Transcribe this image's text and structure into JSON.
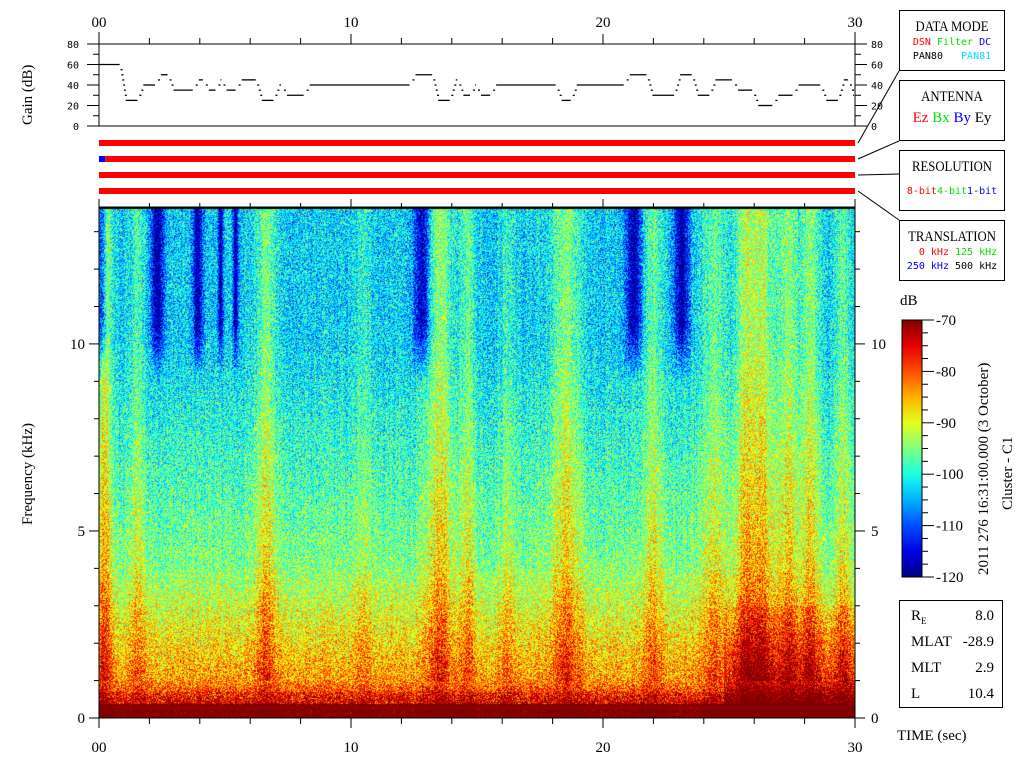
{
  "colors": {
    "red": "#ff0000",
    "green": "#00e000",
    "blue": "#0000ff",
    "cyan": "#00e0ff",
    "black": "#000000"
  },
  "data_mode": {
    "title": "DATA MODE",
    "items": [
      {
        "label": "DSN",
        "color": "#ff0000"
      },
      {
        "label": "Filter",
        "color": "#00e000"
      },
      {
        "label": "DC",
        "color": "#0000ff"
      },
      {
        "label": "PAN80",
        "color": "#000000"
      },
      {
        "label": "PAN81",
        "color": "#00e0ff"
      }
    ]
  },
  "antenna": {
    "title": "ANTENNA",
    "items": [
      {
        "label": "Ez",
        "color": "#ff0000"
      },
      {
        "label": "Bx",
        "color": "#00e000"
      },
      {
        "label": "By",
        "color": "#0000ff"
      },
      {
        "label": "Ey",
        "color": "#000000"
      }
    ]
  },
  "resolution": {
    "title": "RESOLUTION",
    "items": [
      {
        "label": "8-bit",
        "color": "#ff0000"
      },
      {
        "label": "4-bit",
        "color": "#00e000"
      },
      {
        "label": "1-bit",
        "color": "#0000ff"
      }
    ]
  },
  "translation": {
    "title": "TRANSLATION",
    "items": [
      {
        "label": "0 kHz",
        "color": "#ff0000"
      },
      {
        "label": "125 kHz",
        "color": "#00e000"
      },
      {
        "label": "250 kHz",
        "color": "#0000ff"
      },
      {
        "label": "500 kHz",
        "color": "#000000"
      }
    ]
  },
  "info": {
    "rows": [
      {
        "k": "R",
        "sub": "E",
        "v": "8.0"
      },
      {
        "k": "MLAT",
        "v": "-28.9"
      },
      {
        "k": "MLT",
        "v": "2.9"
      },
      {
        "k": "L",
        "v": "10.4"
      }
    ]
  },
  "header_vertical": "2011 276 16:31:00.000 (3 October)",
  "spacecraft": "Cluster - C1",
  "chart_data": [
    {
      "type": "line",
      "ylabel": "Gain (dB)",
      "xlim": [
        0,
        30
      ],
      "ylim": [
        0,
        80
      ],
      "x_tick_labels": [
        "00",
        "10",
        "20",
        "30"
      ],
      "y_tick_labels": [
        "0",
        "20",
        "40",
        "60",
        "80"
      ],
      "steps": [
        [
          0,
          60
        ],
        [
          0.9,
          25
        ],
        [
          1.6,
          40
        ],
        [
          2.3,
          50
        ],
        [
          2.8,
          35
        ],
        [
          3.8,
          45
        ],
        [
          4.2,
          35
        ],
        [
          4.7,
          45
        ],
        [
          4.9,
          35
        ],
        [
          5.5,
          45
        ],
        [
          6.3,
          25
        ],
        [
          7.0,
          40
        ],
        [
          7.3,
          30
        ],
        [
          8.2,
          40
        ],
        [
          12.4,
          50
        ],
        [
          13.3,
          25
        ],
        [
          14.0,
          45
        ],
        [
          14.3,
          30
        ],
        [
          14.8,
          40
        ],
        [
          15.0,
          30
        ],
        [
          15.6,
          40
        ],
        [
          18.2,
          25
        ],
        [
          18.8,
          40
        ],
        [
          20.9,
          50
        ],
        [
          21.8,
          30
        ],
        [
          22.9,
          50
        ],
        [
          23.6,
          30
        ],
        [
          24.3,
          45
        ],
        [
          25.2,
          35
        ],
        [
          26.0,
          20
        ],
        [
          26.8,
          30
        ],
        [
          27.6,
          40
        ],
        [
          28.7,
          25
        ],
        [
          29.4,
          45
        ],
        [
          29.8,
          30
        ],
        [
          30,
          30
        ]
      ]
    },
    {
      "type": "bar",
      "segments": [
        [
          {
            "from": 0,
            "to": 30,
            "color": "#ff0000"
          }
        ],
        [
          {
            "from": 0,
            "to": 0.25,
            "color": "#0000ff"
          },
          {
            "from": 0.25,
            "to": 30,
            "color": "#ff0000"
          }
        ],
        [
          {
            "from": 0,
            "to": 30,
            "color": "#ff0000"
          }
        ],
        [
          {
            "from": 0,
            "to": 30,
            "color": "#ff0000"
          }
        ]
      ]
    },
    {
      "type": "heatmap",
      "xlabel": "TIME (sec)",
      "ylabel": "Frequency (kHz)",
      "xlim": [
        0,
        30
      ],
      "ylim": [
        0,
        13.66
      ],
      "x_tick_labels": [
        "00",
        "10",
        "20",
        "30"
      ],
      "y_tick_labels": [
        "0",
        "5",
        "10"
      ],
      "colorbar": {
        "label": "dB",
        "range": [
          -120,
          -70
        ],
        "tick_labels": [
          "-70",
          "-80",
          "-90",
          "-100",
          "-110",
          "-120"
        ],
        "colormap": "jet"
      }
    }
  ]
}
